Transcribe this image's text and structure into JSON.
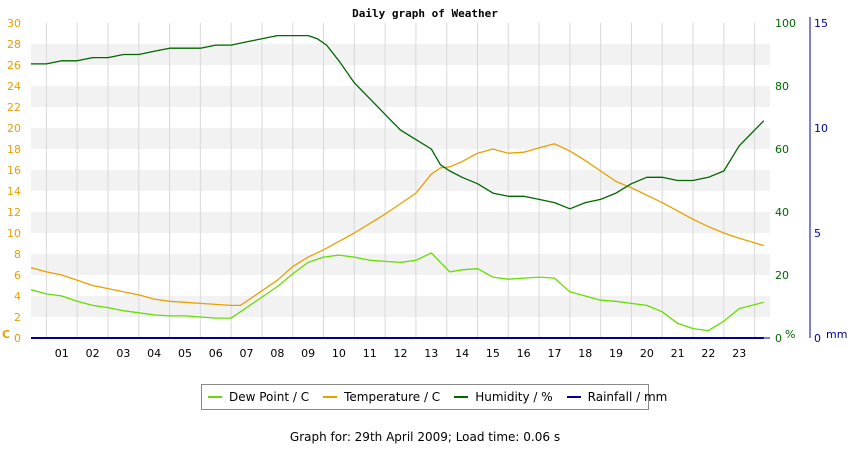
{
  "chart_data": {
    "type": "line",
    "title": "Daily graph of Weather",
    "x_tick_labels": [
      "01",
      "02",
      "03",
      "04",
      "05",
      "06",
      "07",
      "08",
      "09",
      "10",
      "11",
      "12",
      "13",
      "14",
      "15",
      "16",
      "17",
      "18",
      "19",
      "20",
      "21",
      "22",
      "23"
    ],
    "x_range": [
      0,
      24
    ],
    "left_axis": {
      "unit": "C",
      "range": [
        0,
        30
      ],
      "ticks": [
        "0",
        "2",
        "4",
        "6",
        "8",
        "10",
        "12",
        "14",
        "16",
        "18",
        "20",
        "22",
        "24",
        "26",
        "28",
        "30"
      ],
      "color": "#e8a000"
    },
    "right_axis_1": {
      "unit": "%",
      "range": [
        0,
        100
      ],
      "ticks": [
        "0",
        "20",
        "40",
        "60",
        "80",
        "100"
      ],
      "color": "#006600"
    },
    "right_axis_2": {
      "unit": "mm",
      "range": [
        0,
        15
      ],
      "ticks": [
        "0",
        "5",
        "10",
        "15"
      ],
      "color": "#000099"
    },
    "grid": true,
    "legend_position": "bottom",
    "series": [
      {
        "name": "Dew Point / C",
        "color": "#66dd00",
        "axis": "left",
        "x": [
          0,
          0.5,
          1,
          1.5,
          2,
          2.5,
          3,
          3.5,
          4,
          4.5,
          5,
          5.5,
          6,
          6.5,
          6.7,
          7,
          7.5,
          8,
          8.5,
          9,
          9.5,
          10,
          10.5,
          11,
          11.5,
          12,
          12.5,
          13,
          13.3,
          13.6,
          14,
          14.5,
          15,
          15.5,
          16,
          16.5,
          17,
          17.5,
          18,
          18.5,
          19,
          19.5,
          20,
          20.5,
          21,
          21.5,
          22,
          22.5,
          23,
          23.8
        ],
        "values": [
          4.6,
          4.2,
          4.0,
          3.5,
          3.1,
          2.9,
          2.6,
          2.4,
          2.2,
          2.1,
          2.1,
          2.0,
          1.9,
          1.9,
          2.3,
          2.9,
          3.9,
          4.9,
          6.1,
          7.2,
          7.7,
          7.9,
          7.7,
          7.4,
          7.3,
          7.2,
          7.4,
          8.1,
          7.2,
          6.3,
          6.5,
          6.6,
          5.8,
          5.6,
          5.7,
          5.8,
          5.7,
          4.4,
          4.0,
          3.6,
          3.5,
          3.3,
          3.1,
          2.5,
          1.4,
          0.9,
          0.7,
          1.6,
          2.8,
          3.4
        ]
      },
      {
        "name": "Temperature / C",
        "color": "#e8a000",
        "axis": "left",
        "x": [
          0,
          0.5,
          1,
          1.5,
          2,
          2.5,
          3,
          3.5,
          4,
          4.5,
          5,
          5.5,
          6,
          6.5,
          6.8,
          7,
          7.5,
          8,
          8.5,
          9,
          9.5,
          10,
          10.5,
          11,
          11.5,
          12,
          12.5,
          13,
          13.3,
          13.6,
          14,
          14.5,
          15,
          15.5,
          16,
          16.5,
          17,
          17.5,
          18,
          18.5,
          19,
          19.5,
          20,
          20.5,
          21,
          21.5,
          22,
          22.5,
          23,
          23.8
        ],
        "values": [
          6.7,
          6.3,
          6.0,
          5.5,
          5.0,
          4.7,
          4.4,
          4.1,
          3.7,
          3.5,
          3.4,
          3.3,
          3.2,
          3.1,
          3.1,
          3.5,
          4.5,
          5.5,
          6.8,
          7.7,
          8.4,
          9.2,
          10.0,
          10.9,
          11.8,
          12.8,
          13.8,
          15.6,
          16.2,
          16.3,
          16.8,
          17.6,
          18.0,
          17.6,
          17.7,
          18.1,
          18.5,
          17.8,
          16.9,
          15.9,
          14.9,
          14.3,
          13.6,
          12.9,
          12.1,
          11.3,
          10.6,
          10.0,
          9.5,
          8.8
        ]
      },
      {
        "name": "Humidity / %",
        "color": "#006600",
        "axis": "right_1",
        "x": [
          0,
          0.5,
          1,
          1.5,
          2,
          2.5,
          3,
          3.5,
          4,
          4.5,
          5,
          5.5,
          6,
          6.5,
          7,
          7.5,
          8,
          8.5,
          9,
          9.3,
          9.6,
          10,
          10.5,
          11,
          11.5,
          12,
          12.5,
          13,
          13.3,
          13.6,
          14,
          14.5,
          15,
          15.5,
          16,
          16.5,
          17,
          17.5,
          18,
          18.5,
          19,
          19.5,
          20,
          20.5,
          21,
          21.5,
          22,
          22.5,
          23,
          23.8
        ],
        "values": [
          87,
          87,
          88,
          88,
          89,
          89,
          90,
          90,
          91,
          92,
          92,
          92,
          93,
          93,
          94,
          95,
          96,
          96,
          96,
          95,
          93,
          88,
          81,
          76,
          71,
          66,
          63,
          60,
          55,
          53,
          51,
          49,
          46,
          45,
          45,
          44,
          43,
          41,
          43,
          44,
          46,
          49,
          51,
          51,
          50,
          50,
          51,
          53,
          61,
          69
        ]
      },
      {
        "name": "Rainfall / mm",
        "color": "#000099",
        "axis": "right_2",
        "x": [
          0,
          23.8
        ],
        "values": [
          0,
          0
        ]
      }
    ]
  },
  "footer": "Graph for: 29th April 2009; Load time: 0.06 s"
}
